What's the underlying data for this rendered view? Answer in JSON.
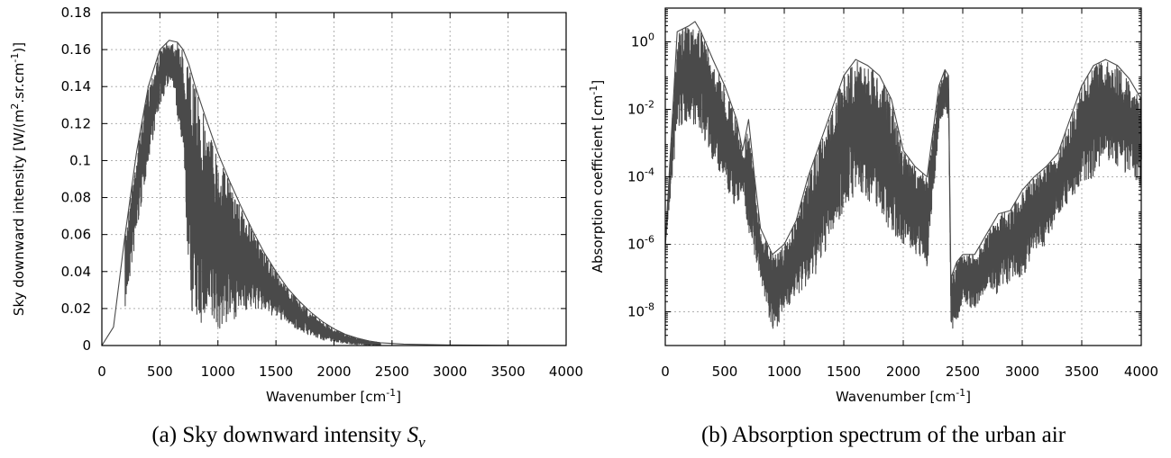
{
  "chart_data": [
    {
      "type": "line",
      "xlabel": "Wavenumber [cm",
      "xlabel_sup": "-1",
      "xlabel_end": "]",
      "ylabel": "Sky downward intensity [W/(m",
      "ylabel_sup1": "2",
      "ylabel_mid": ".sr.cm",
      "ylabel_sup2": "-1",
      "ylabel_end": ")]",
      "caption_prefix": "(a) Sky downward intensity ",
      "caption_symbol": "S",
      "caption_subscript": "ν",
      "xlim": [
        0,
        4000
      ],
      "ylim": [
        0,
        0.18
      ],
      "xticks": [
        0,
        500,
        1000,
        1500,
        2000,
        2500,
        3000,
        3500,
        4000
      ],
      "xtick_labels": [
        "0",
        "500",
        "1000",
        "1500",
        "2000",
        "2500",
        "3000",
        "3500",
        "4000"
      ],
      "yticks": [
        0,
        0.02,
        0.04,
        0.06,
        0.08,
        0.1,
        0.12,
        0.14,
        0.16,
        0.18
      ],
      "ytick_labels": [
        "0",
        "0.02",
        "0.04",
        "0.06",
        "0.08",
        "0.1",
        "0.12",
        "0.14",
        "0.16",
        "0.18"
      ],
      "grid": true,
      "line_color": "#4a4a4a",
      "series": [
        {
          "x": [
            0,
            100,
            200,
            300,
            400,
            500,
            580,
            650,
            700,
            750,
            800,
            900,
            1000,
            1100,
            1200,
            1300,
            1400,
            1500,
            1600,
            1700,
            1800,
            1900,
            2000,
            2100,
            2200,
            2300,
            2400,
            2600,
            3000,
            3500,
            4000
          ],
          "y": [
            0,
            0.01,
            0.06,
            0.105,
            0.14,
            0.16,
            0.165,
            0.164,
            0.16,
            0.152,
            0.141,
            0.122,
            0.104,
            0.089,
            0.075,
            0.062,
            0.05,
            0.04,
            0.031,
            0.024,
            0.018,
            0.013,
            0.009,
            0.006,
            0.004,
            0.0025,
            0.0015,
            0.0008,
            0.0003,
            0.0001,
            5e-05
          ],
          "envelope": "upper"
        },
        {
          "x": [
            200,
            300,
            400,
            500,
            600,
            700,
            760,
            800,
            900,
            1000,
            1100,
            1200,
            1300,
            1400,
            1500,
            1600,
            1700,
            1800,
            1900,
            2000,
            2100,
            2200,
            2300,
            2400
          ],
          "y": [
            0.02,
            0.06,
            0.1,
            0.13,
            0.145,
            0.1,
            0.02,
            0.012,
            0.01,
            0.008,
            0.012,
            0.018,
            0.02,
            0.018,
            0.015,
            0.012,
            0.008,
            0.005,
            0.003,
            0.002,
            0.001,
            0.0005,
            0.0002,
            0.0001
          ],
          "envelope": "lower"
        }
      ]
    },
    {
      "type": "line",
      "xlabel": "Wavenumber [cm",
      "xlabel_sup": "-1",
      "xlabel_end": "]",
      "ylabel": "Absorption coefficient [cm",
      "ylabel_sup": "-1",
      "ylabel_end": "]",
      "caption": "(b) Absorption spectrum of the urban air",
      "yscale": "log",
      "xlim": [
        0,
        4000
      ],
      "ylim": [
        1e-09,
        10
      ],
      "xticks": [
        0,
        500,
        1000,
        1500,
        2000,
        2500,
        3000,
        3500,
        4000
      ],
      "xtick_labels": [
        "0",
        "500",
        "1000",
        "1500",
        "2000",
        "2500",
        "3000",
        "3500",
        "4000"
      ],
      "yticks": [
        1e-08,
        1e-06,
        0.0001,
        0.01,
        1
      ],
      "ytick_labels": [
        {
          "base": "10",
          "exp": "-8"
        },
        {
          "base": "10",
          "exp": "-6"
        },
        {
          "base": "10",
          "exp": "-4"
        },
        {
          "base": "10",
          "exp": "-2"
        },
        {
          "base": "10",
          "exp": "0"
        }
      ],
      "grid": true,
      "line_color": "#4a4a4a",
      "series": [
        {
          "x": [
            0,
            100,
            200,
            250,
            300,
            400,
            500,
            600,
            650,
            700,
            750,
            800,
            900,
            1000,
            1100,
            1200,
            1300,
            1400,
            1500,
            1600,
            1700,
            1800,
            1900,
            2000,
            2100,
            2200,
            2300,
            2350,
            2380,
            2400,
            2450,
            2500,
            2600,
            2700,
            2800,
            2900,
            3000,
            3100,
            3200,
            3300,
            3400,
            3500,
            3600,
            3700,
            3800,
            3900,
            4000
          ],
          "y": [
            1e-06,
            2,
            3,
            4,
            2,
            0.3,
            0.05,
            0.005,
            0.0006,
            0.005,
            0.0001,
            3e-06,
            5e-07,
            1e-06,
            5e-06,
            0.0001,
            0.001,
            0.01,
            0.1,
            0.3,
            0.2,
            0.1,
            0.02,
            0.0006,
            0.0002,
            0.0001,
            0.05,
            0.15,
            0.1,
            1e-07,
            3e-07,
            5e-07,
            5e-07,
            2e-06,
            8e-06,
            1e-05,
            4e-05,
            0.0001,
            0.0002,
            0.0005,
            0.005,
            0.05,
            0.2,
            0.3,
            0.2,
            0.08,
            0.02
          ],
          "envelope": "upper"
        },
        {
          "x": [
            0,
            100,
            200,
            300,
            400,
            500,
            600,
            650,
            700,
            800,
            900,
            1000,
            1100,
            1200,
            1300,
            1400,
            1500,
            1600,
            1700,
            1800,
            1900,
            2000,
            2100,
            2200,
            2300,
            2350,
            2380,
            2400,
            2450,
            2500,
            2600,
            2700,
            2800,
            2900,
            3000,
            3100,
            3200,
            3300,
            3400,
            3500,
            3600,
            3700,
            3800,
            3900,
            4000
          ],
          "y": [
            1e-06,
            0.002,
            0.005,
            0.002,
            0.0003,
            5e-05,
            1e-05,
            5e-05,
            1e-06,
            1e-07,
            2e-09,
            1e-08,
            3e-08,
            5e-08,
            2e-07,
            2e-06,
            1e-05,
            3e-05,
            2e-05,
            1e-05,
            2e-06,
            1e-06,
            5e-07,
            2e-07,
            0.003,
            0.01,
            0.005,
            2e-09,
            5e-09,
            2e-08,
            1e-08,
            5e-08,
            3e-08,
            8e-08,
            1e-07,
            5e-07,
            1e-06,
            8e-06,
            2e-05,
            5e-05,
            0.0001,
            0.0003,
            0.0002,
            0.0001,
            5e-05
          ],
          "envelope": "lower"
        }
      ]
    }
  ]
}
